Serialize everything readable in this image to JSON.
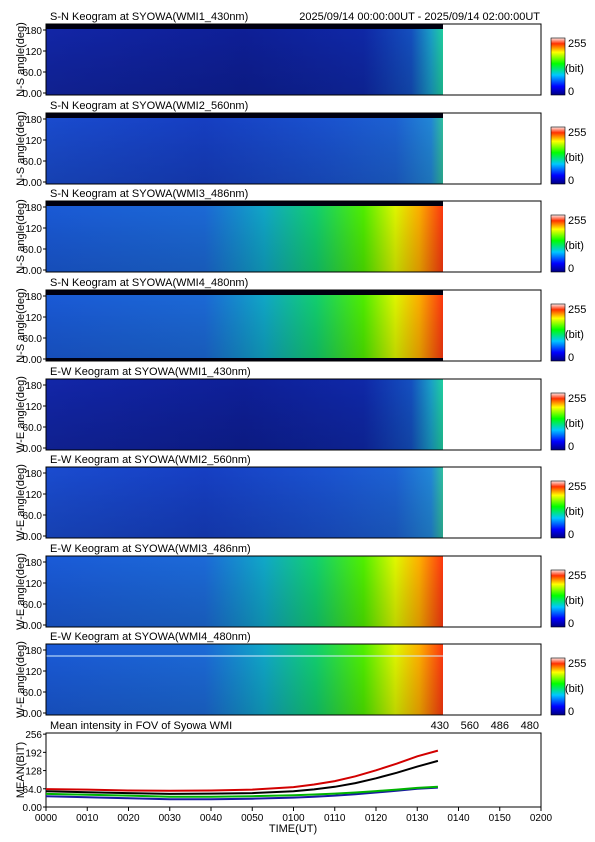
{
  "header": {
    "time_range": "2025/09/14 00:00:00UT - 2025/09/14 02:00:00UT"
  },
  "keogram_axis": {
    "ylabel_ns": "N-S angle(deg)",
    "ylabel_we": "W-E angle(deg)",
    "yticks": [
      "180",
      "120",
      "60.0",
      "0.00"
    ]
  },
  "colorbar": {
    "max": "255",
    "unit": "(bit)",
    "min": "0"
  },
  "panels": [
    {
      "title": "S-N Keogram at SYOWA(WMI1_430nm)",
      "axis": "ns"
    },
    {
      "title": "S-N Keogram at SYOWA(WMI2_560nm)",
      "axis": "ns"
    },
    {
      "title": "S-N Keogram at SYOWA(WMI3_486nm)",
      "axis": "ns"
    },
    {
      "title": "S-N Keogram at SYOWA(WMI4_480nm)",
      "axis": "ns"
    },
    {
      "title": "E-W Keogram at SYOWA(WMI1_430nm)",
      "axis": "we"
    },
    {
      "title": "E-W Keogram at SYOWA(WMI2_560nm)",
      "axis": "we"
    },
    {
      "title": "E-W Keogram at SYOWA(WMI3_486nm)",
      "axis": "we"
    },
    {
      "title": "E-W Keogram at SYOWA(WMI4_480nm)",
      "axis": "we"
    }
  ],
  "chart_data": {
    "type": "line",
    "title": "Mean intensity in FOV of Syowa WMI",
    "xlabel": "TIME(UT)",
    "ylabel": "MEAN(BIT)",
    "xlim": [
      0,
      120
    ],
    "ylim": [
      0,
      260
    ],
    "xticks": [
      "0000",
      "0010",
      "0020",
      "0030",
      "0040",
      "0050",
      "0100",
      "0110",
      "0120",
      "0130",
      "0140",
      "0150",
      "0200"
    ],
    "yticks": [
      "256",
      "192",
      "128",
      "64.0",
      "0.00"
    ],
    "ytick_values": [
      256,
      192,
      128,
      64,
      0
    ],
    "x": [
      0,
      10,
      20,
      30,
      40,
      50,
      60,
      65,
      70,
      75,
      80,
      85,
      90,
      95
    ],
    "series": [
      {
        "name": "430",
        "color": "#1a1aa0",
        "values": [
          38,
          34,
          31,
          27,
          27,
          29,
          33,
          36,
          40,
          45,
          51,
          57,
          64,
          68
        ]
      },
      {
        "name": "560",
        "color": "#00b400",
        "values": [
          46,
          43,
          40,
          36,
          36,
          38,
          41,
          44,
          47,
          51,
          56,
          61,
          67,
          71
        ]
      },
      {
        "name": "486",
        "color": "#d20000",
        "values": [
          63,
          61,
          58,
          57,
          58,
          61,
          70,
          79,
          91,
          108,
          129,
          152,
          178,
          198
        ]
      },
      {
        "name": "480",
        "color": "#000000",
        "values": [
          55,
          52,
          49,
          46,
          47,
          49,
          55,
          62,
          71,
          84,
          101,
          120,
          142,
          162
        ]
      }
    ]
  }
}
